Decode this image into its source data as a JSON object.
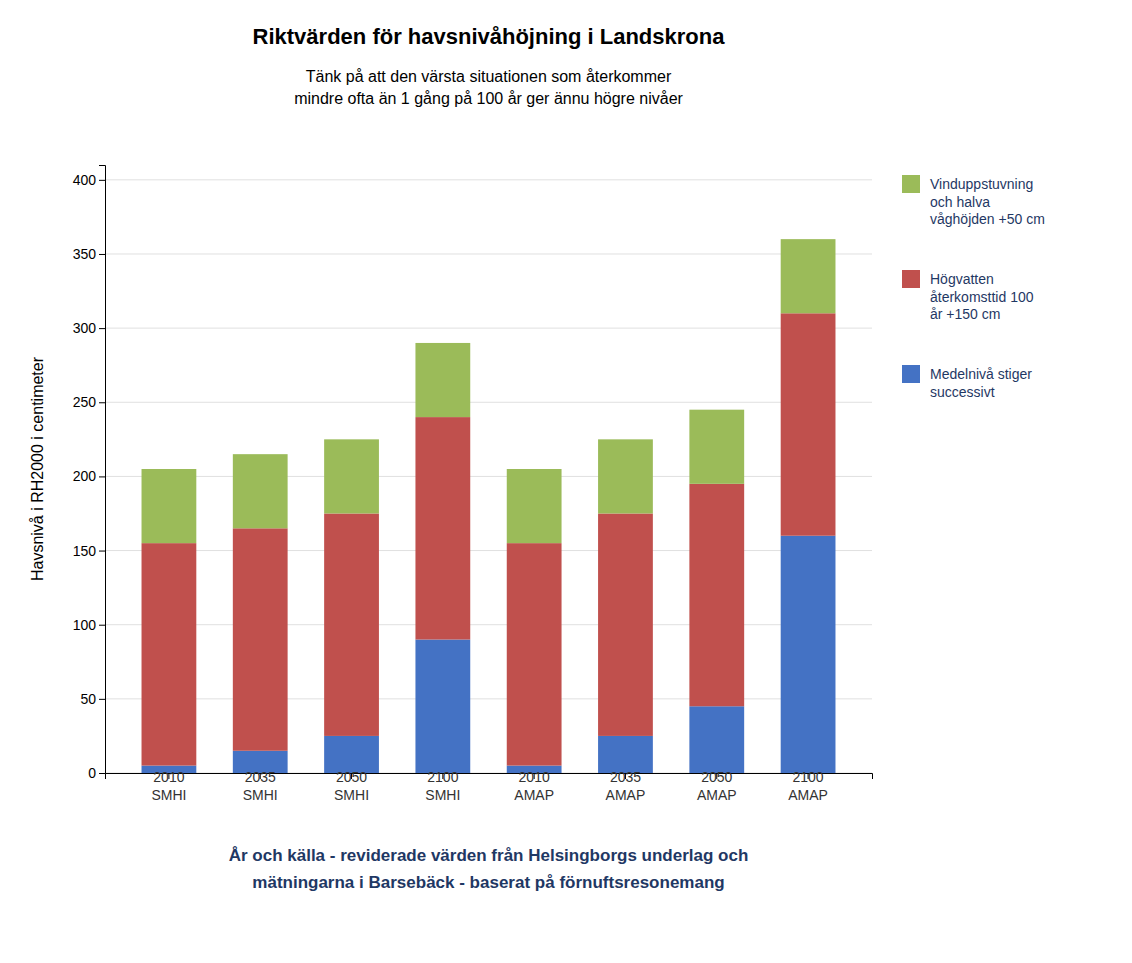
{
  "chart_data": {
    "type": "bar",
    "stacked": true,
    "title": "Riktvärden för havsnivåhöjning i Landskrona",
    "subtitle": "Tänk på att den värsta situationen som återkommer\nmindre ofta än 1 gång på 100 år ger ännu högre nivåer",
    "ylabel": "Havsnivå i RH2000 i centimeter",
    "xlabel": "År och källa - reviderade värden från Helsingborgs underlag och\nmätningarna i Barsebäck - baserat på förnuftsresonemang",
    "categories": [
      "2010\nSMHI",
      "2035\nSMHI",
      "2050\nSMHI",
      "2100\nSMHI",
      "2010\nAMAP",
      "2035\nAMAP",
      "2050\nAMAP",
      "2100\nAMAP"
    ],
    "series": [
      {
        "name": "Medelnivå stiger\nsuccessivt",
        "color": "#4472C4",
        "values": [
          5,
          15,
          25,
          90,
          5,
          25,
          45,
          160
        ]
      },
      {
        "name": "Högvatten\nåterkomsttid 100\når +150 cm",
        "color": "#C0504D",
        "values": [
          150,
          150,
          150,
          150,
          150,
          150,
          150,
          150
        ]
      },
      {
        "name": "Vinduppstuvning\noch halva\nvåghöjden +50 cm",
        "color": "#9BBB59",
        "values": [
          50,
          50,
          50,
          50,
          50,
          50,
          50,
          50
        ]
      }
    ],
    "ylim": [
      0,
      410
    ],
    "yticks": [
      0,
      50,
      100,
      150,
      200,
      250,
      300,
      350,
      400
    ],
    "grid": true,
    "legend": "right"
  }
}
